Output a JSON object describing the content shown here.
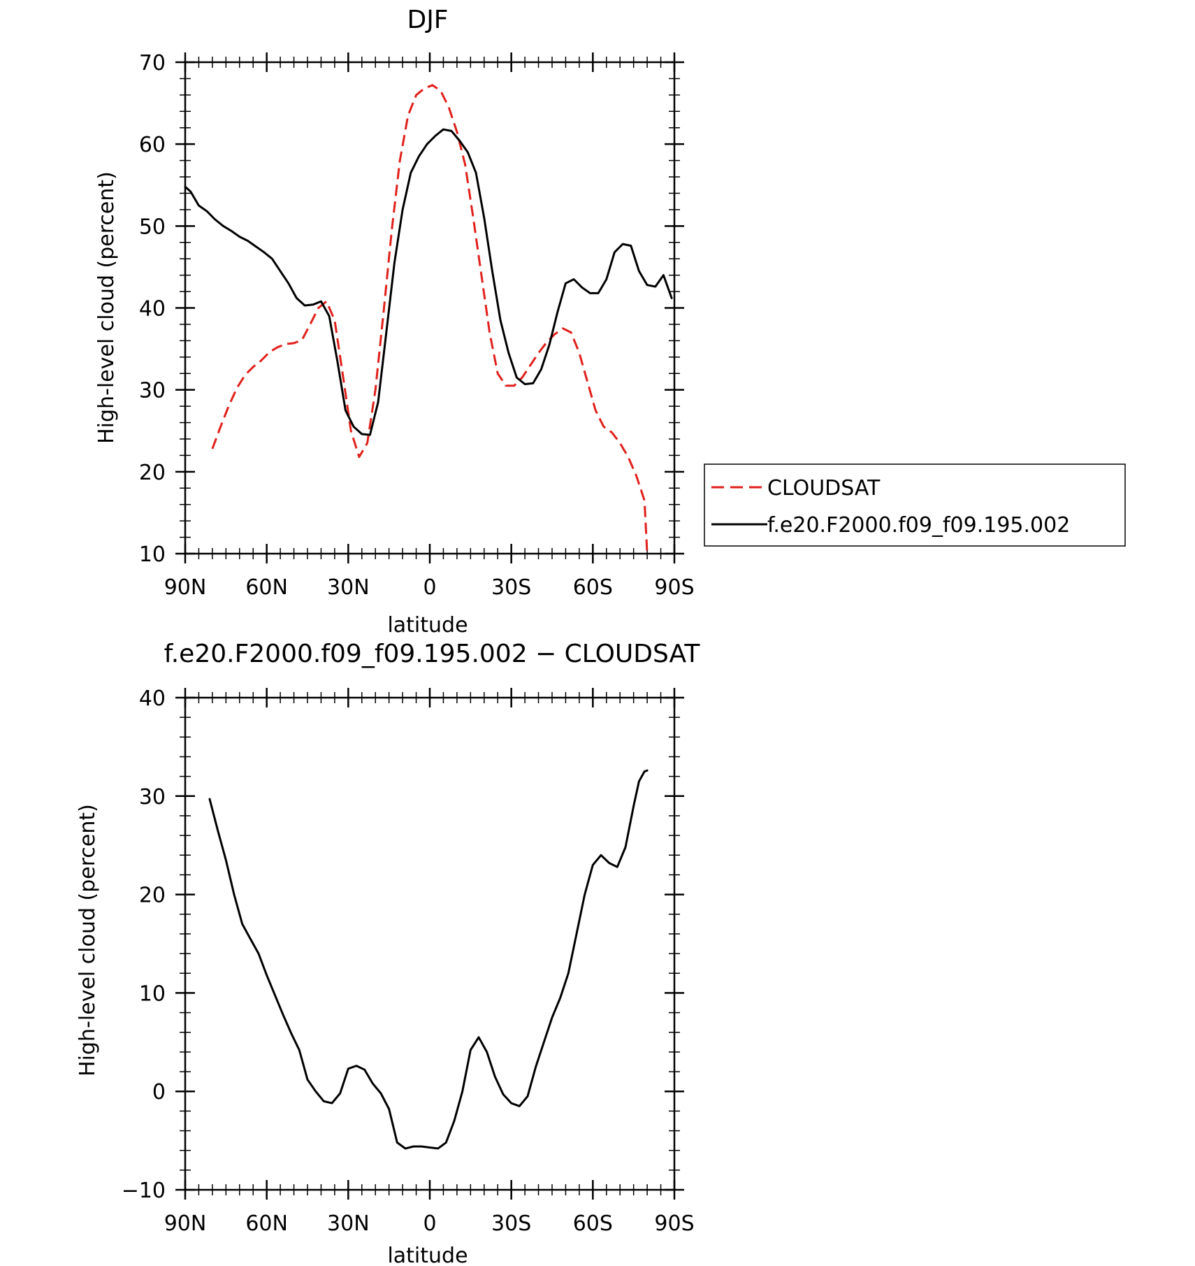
{
  "chart_data": [
    {
      "type": "line",
      "title": "DJF",
      "xlabel": "latitude",
      "ylabel": "High-level cloud (percent)",
      "xlim": [
        90,
        -90
      ],
      "ylim": [
        10,
        70
      ],
      "x_ticks": [
        90,
        60,
        30,
        0,
        -30,
        -60,
        -90
      ],
      "x_tick_labels": [
        "90N",
        "60N",
        "30N",
        "0",
        "30S",
        "60S",
        "90S"
      ],
      "y_ticks": [
        10,
        20,
        30,
        40,
        50,
        60,
        70
      ],
      "y_tick_labels": [
        "10",
        "20",
        "30",
        "40",
        "50",
        "60",
        "70"
      ],
      "legend_position": "right",
      "series": [
        {
          "name": "CLOUDSAT",
          "color": "#e0201b",
          "style": "dashed",
          "x": [
            80,
            77,
            74,
            71,
            68,
            65,
            62,
            59,
            56,
            53,
            50,
            47,
            44,
            41,
            38,
            35,
            32,
            29,
            26,
            23,
            20,
            17,
            14,
            11,
            8,
            5,
            2,
            -1,
            -4,
            -7,
            -10,
            -13,
            -16,
            -19,
            -22,
            -25,
            -28,
            -31,
            -34,
            -37,
            -40,
            -43,
            -46,
            -49,
            -52,
            -55,
            -58,
            -61,
            -64,
            -67,
            -70,
            -73,
            -76,
            -79,
            -80
          ],
          "y": [
            22.8,
            25.5,
            28.0,
            30.2,
            31.8,
            32.8,
            33.6,
            34.6,
            35.2,
            35.6,
            35.7,
            36.1,
            38.0,
            40.0,
            40.8,
            38.5,
            31.8,
            25.0,
            21.8,
            23.5,
            30.0,
            39.5,
            49.5,
            58.0,
            63.5,
            66.0,
            66.8,
            67.2,
            66.5,
            64.5,
            61.5,
            57.5,
            51.0,
            44.0,
            37.0,
            32.0,
            30.5,
            30.5,
            31.5,
            33.0,
            34.5,
            35.8,
            36.8,
            37.5,
            37.0,
            34.5,
            31.0,
            27.5,
            25.5,
            24.8,
            23.5,
            21.8,
            19.5,
            16.5,
            10.0
          ]
        },
        {
          "name": "f.e20.F2000.f09_f09.195.002",
          "color": "#000000",
          "style": "solid",
          "x": [
            90,
            88,
            85,
            82,
            79,
            76,
            73,
            70,
            67,
            64,
            61,
            58,
            55,
            52,
            49,
            46,
            43,
            40,
            37,
            34,
            31,
            28,
            25,
            22,
            19,
            16,
            13,
            10,
            7,
            4,
            1,
            -2,
            -5,
            -8,
            -11,
            -14,
            -17,
            -20,
            -23,
            -26,
            -29,
            -32,
            -35,
            -38,
            -41,
            -44,
            -47,
            -50,
            -53,
            -56,
            -59,
            -62,
            -65,
            -68,
            -71,
            -74,
            -77,
            -80,
            -83,
            -86,
            -89
          ],
          "y": [
            54.8,
            54.2,
            52.5,
            51.8,
            50.8,
            50.0,
            49.4,
            48.7,
            48.2,
            47.5,
            46.8,
            46.0,
            44.5,
            43.0,
            41.2,
            40.3,
            40.4,
            40.8,
            39.0,
            33.5,
            27.5,
            25.5,
            24.6,
            24.5,
            28.5,
            37.0,
            45.5,
            52.0,
            56.5,
            58.5,
            60.0,
            61.0,
            61.8,
            61.6,
            60.4,
            59.0,
            56.5,
            51.0,
            44.5,
            38.5,
            34.5,
            31.5,
            30.7,
            30.8,
            32.5,
            35.5,
            39.5,
            43.0,
            43.5,
            42.5,
            41.8,
            41.8,
            43.5,
            46.8,
            47.8,
            47.6,
            44.5,
            42.8,
            42.6,
            44.0,
            41.2
          ]
        }
      ]
    },
    {
      "type": "line",
      "title": "f.e20.F2000.f09_f09.195.002 − CLOUDSAT",
      "xlabel": "latitude",
      "ylabel": "High-level cloud (percent)",
      "xlim": [
        90,
        -90
      ],
      "ylim": [
        -10,
        40
      ],
      "x_ticks": [
        90,
        60,
        30,
        0,
        -30,
        -60,
        -90
      ],
      "x_tick_labels": [
        "90N",
        "60N",
        "30N",
        "0",
        "30S",
        "60S",
        "90S"
      ],
      "y_ticks": [
        -10,
        0,
        10,
        20,
        30,
        40
      ],
      "y_tick_labels": [
        "−10",
        "0",
        "10",
        "20",
        "30",
        "40"
      ],
      "series": [
        {
          "color": "#000000",
          "style": "solid",
          "x": [
            81,
            78,
            75,
            72,
            69,
            66,
            63,
            60,
            57,
            54,
            51,
            48,
            45,
            42,
            39,
            36,
            33,
            30,
            27,
            24,
            21,
            18,
            15,
            12,
            9,
            6,
            3,
            0,
            -3,
            -6,
            -9,
            -12,
            -15,
            -18,
            -21,
            -24,
            -27,
            -30,
            -33,
            -36,
            -39,
            -42,
            -45,
            -48,
            -51,
            -54,
            -57,
            -60,
            -63,
            -66,
            -69,
            -72,
            -75,
            -77,
            -79,
            -80
          ],
          "y": [
            29.7,
            26.5,
            23.5,
            20.0,
            17.0,
            15.5,
            14.0,
            11.8,
            9.8,
            7.8,
            5.9,
            4.2,
            1.2,
            0.0,
            -1.0,
            -1.2,
            -0.2,
            2.3,
            2.6,
            2.2,
            0.8,
            -0.2,
            -1.8,
            -5.2,
            -5.8,
            -5.6,
            -5.6,
            -5.7,
            -5.8,
            -5.2,
            -3.0,
            0.0,
            4.2,
            5.5,
            4.0,
            1.5,
            -0.3,
            -1.2,
            -1.5,
            -0.5,
            2.5,
            5.0,
            7.5,
            9.5,
            12.0,
            16.0,
            20.0,
            23.0,
            24.0,
            23.2,
            22.8,
            24.8,
            29.0,
            31.5,
            32.5,
            32.6
          ]
        }
      ]
    }
  ]
}
